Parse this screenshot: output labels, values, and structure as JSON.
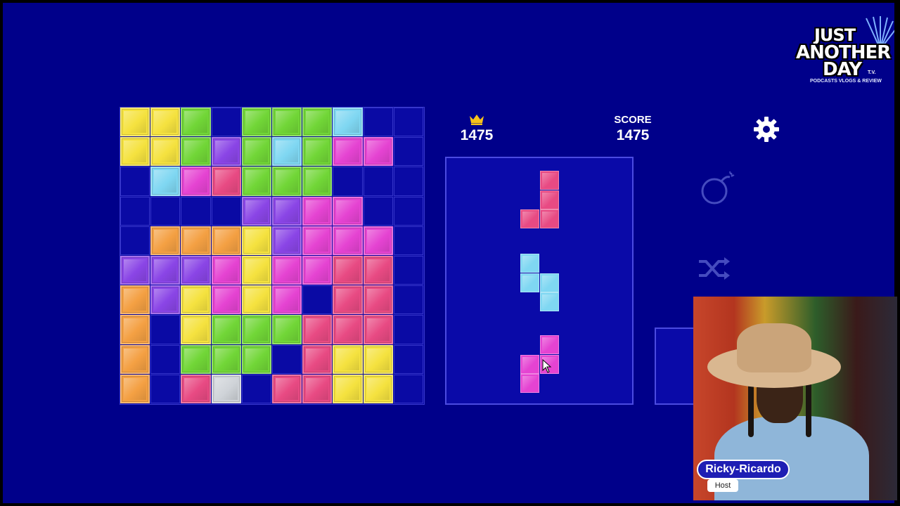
{
  "hud": {
    "best_score": "1475",
    "score_label": "SCORE",
    "score_value": "1475"
  },
  "icons": {
    "best": "crown-icon",
    "settings": "gear-icon",
    "bomb": "bomb-icon",
    "shuffle": "shuffle-icon"
  },
  "colors": {
    "background": "#00008a",
    "empty_cell": "#0a0aa4",
    "Y": "#f5e23f",
    "G": "#71d637",
    "C": "#7fd7f2",
    "P": "#8a45e6",
    "M": "#e543d2",
    "R": "#e84a83",
    "O": "#f4a043",
    "S": "#cfd3d8"
  },
  "board": {
    "rows": [
      [
        "Y",
        "Y",
        "G",
        "",
        "G",
        "G",
        "G",
        "C",
        "",
        ""
      ],
      [
        "Y",
        "Y",
        "G",
        "P",
        "G",
        "C",
        "G",
        "M",
        "M",
        ""
      ],
      [
        "",
        "C",
        "M",
        "R",
        "G",
        "G",
        "G",
        "",
        "",
        ""
      ],
      [
        "",
        "",
        "",
        "",
        "P",
        "P",
        "M",
        "M",
        "",
        ""
      ],
      [
        "",
        "O",
        "O",
        "O",
        "Y",
        "P",
        "M",
        "M",
        "M",
        ""
      ],
      [
        "P",
        "P",
        "P",
        "M",
        "Y",
        "M",
        "M",
        "R",
        "R",
        ""
      ],
      [
        "O",
        "P",
        "Y",
        "M",
        "Y",
        "M",
        "",
        "R",
        "R",
        ""
      ],
      [
        "O",
        "",
        "Y",
        "G",
        "G",
        "G",
        "R",
        "R",
        "R",
        ""
      ],
      [
        "O",
        "",
        "G",
        "G",
        "G",
        "",
        "R",
        "Y",
        "Y",
        ""
      ],
      [
        "O",
        "",
        "R",
        "S",
        "",
        "R",
        "R",
        "Y",
        "Y",
        ""
      ]
    ]
  },
  "pieces": [
    {
      "color": "R",
      "cells": [
        [
          1,
          0
        ],
        [
          1,
          1
        ],
        [
          0,
          2
        ],
        [
          1,
          2
        ]
      ]
    },
    {
      "color": "C",
      "cells": [
        [
          0,
          0
        ],
        [
          0,
          1
        ],
        [
          1,
          1
        ],
        [
          1,
          2
        ]
      ]
    },
    {
      "color": "M",
      "cells": [
        [
          1,
          0
        ],
        [
          0,
          1
        ],
        [
          1,
          1
        ],
        [
          0,
          2
        ]
      ]
    }
  ],
  "logo": {
    "line1": "JUST",
    "line2": "ANOTHER",
    "line3": "DAY",
    "tv": "T.V.",
    "tagline": "PODCASTS VLOGS & REVIEW"
  },
  "stream": {
    "host_name": "Ricky-Ricardo",
    "host_role": "Host"
  }
}
